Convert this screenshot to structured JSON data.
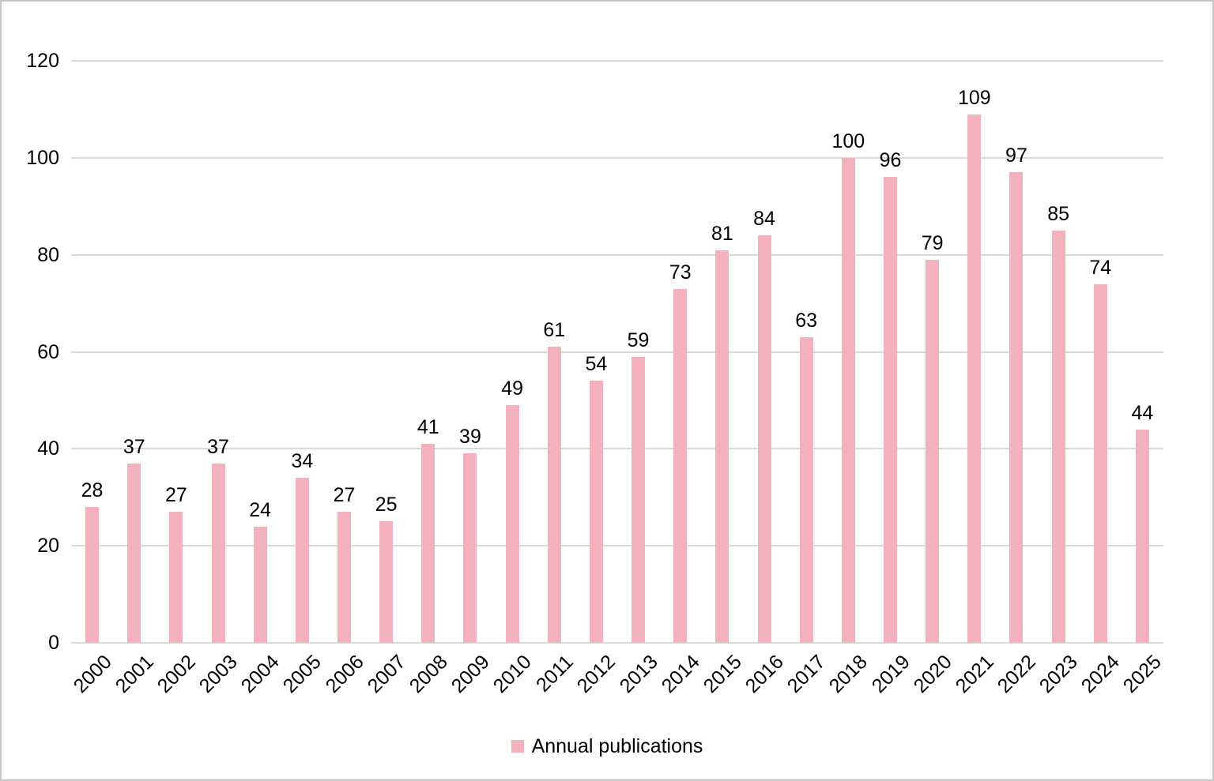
{
  "chart_data": {
    "type": "bar",
    "title": "",
    "categories": [
      "2000",
      "2001",
      "2002",
      "2003",
      "2004",
      "2005",
      "2006",
      "2007",
      "2008",
      "2009",
      "2010",
      "2011",
      "2012",
      "2013",
      "2014",
      "2015",
      "2016",
      "2017",
      "2018",
      "2019",
      "2020",
      "2021",
      "2022",
      "2023",
      "2024",
      "2025"
    ],
    "values": [
      28,
      37,
      27,
      37,
      24,
      34,
      27,
      25,
      41,
      39,
      49,
      61,
      54,
      59,
      73,
      81,
      84,
      63,
      100,
      96,
      79,
      109,
      97,
      85,
      74,
      44
    ],
    "legend": "Annual publications",
    "xlabel": "",
    "ylabel": "",
    "ylim": [
      0,
      120
    ],
    "yticks": [
      0,
      20,
      40,
      60,
      80,
      100,
      120
    ],
    "grid": "horizontal",
    "legend_position": "bottom",
    "value_labels_shown": true,
    "bar_color": "#f3b1bc",
    "gridline_color": "#d9d9d9",
    "text_color": "#000000",
    "border_color": "#c6c6c6"
  }
}
